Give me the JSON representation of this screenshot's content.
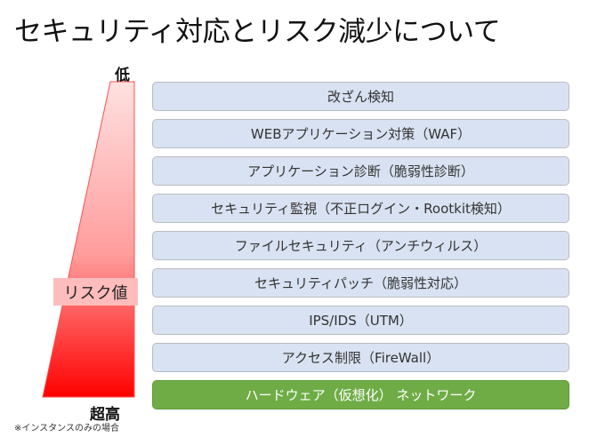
{
  "title": "セキュリティ対応とリスク減少について",
  "scale": {
    "low_label": "低",
    "high_label": "超高",
    "axis_label": "リスク値",
    "gradient_colors": [
      "#ffe0e0",
      "#ff0000"
    ]
  },
  "layers": [
    "改ざん検知",
    "WEBアプリケーション対策（WAF）",
    "アプリケーション診断（脆弱性診断）",
    "セキュリティ監視（不正ログイン・Rootkit検知）",
    "ファイルセキュリティ（アンチウィルス）",
    "セキュリティパッチ（脆弱性対応）",
    "IPS/IDS（UTM）",
    "アクセス制限（FireWall）"
  ],
  "base_layer": "ハードウェア（仮想化） ネットワーク",
  "note": "※インスタンスのみの場合",
  "colors": {
    "layer": "#d9e2f2",
    "base_layer": "#6fac46"
  }
}
